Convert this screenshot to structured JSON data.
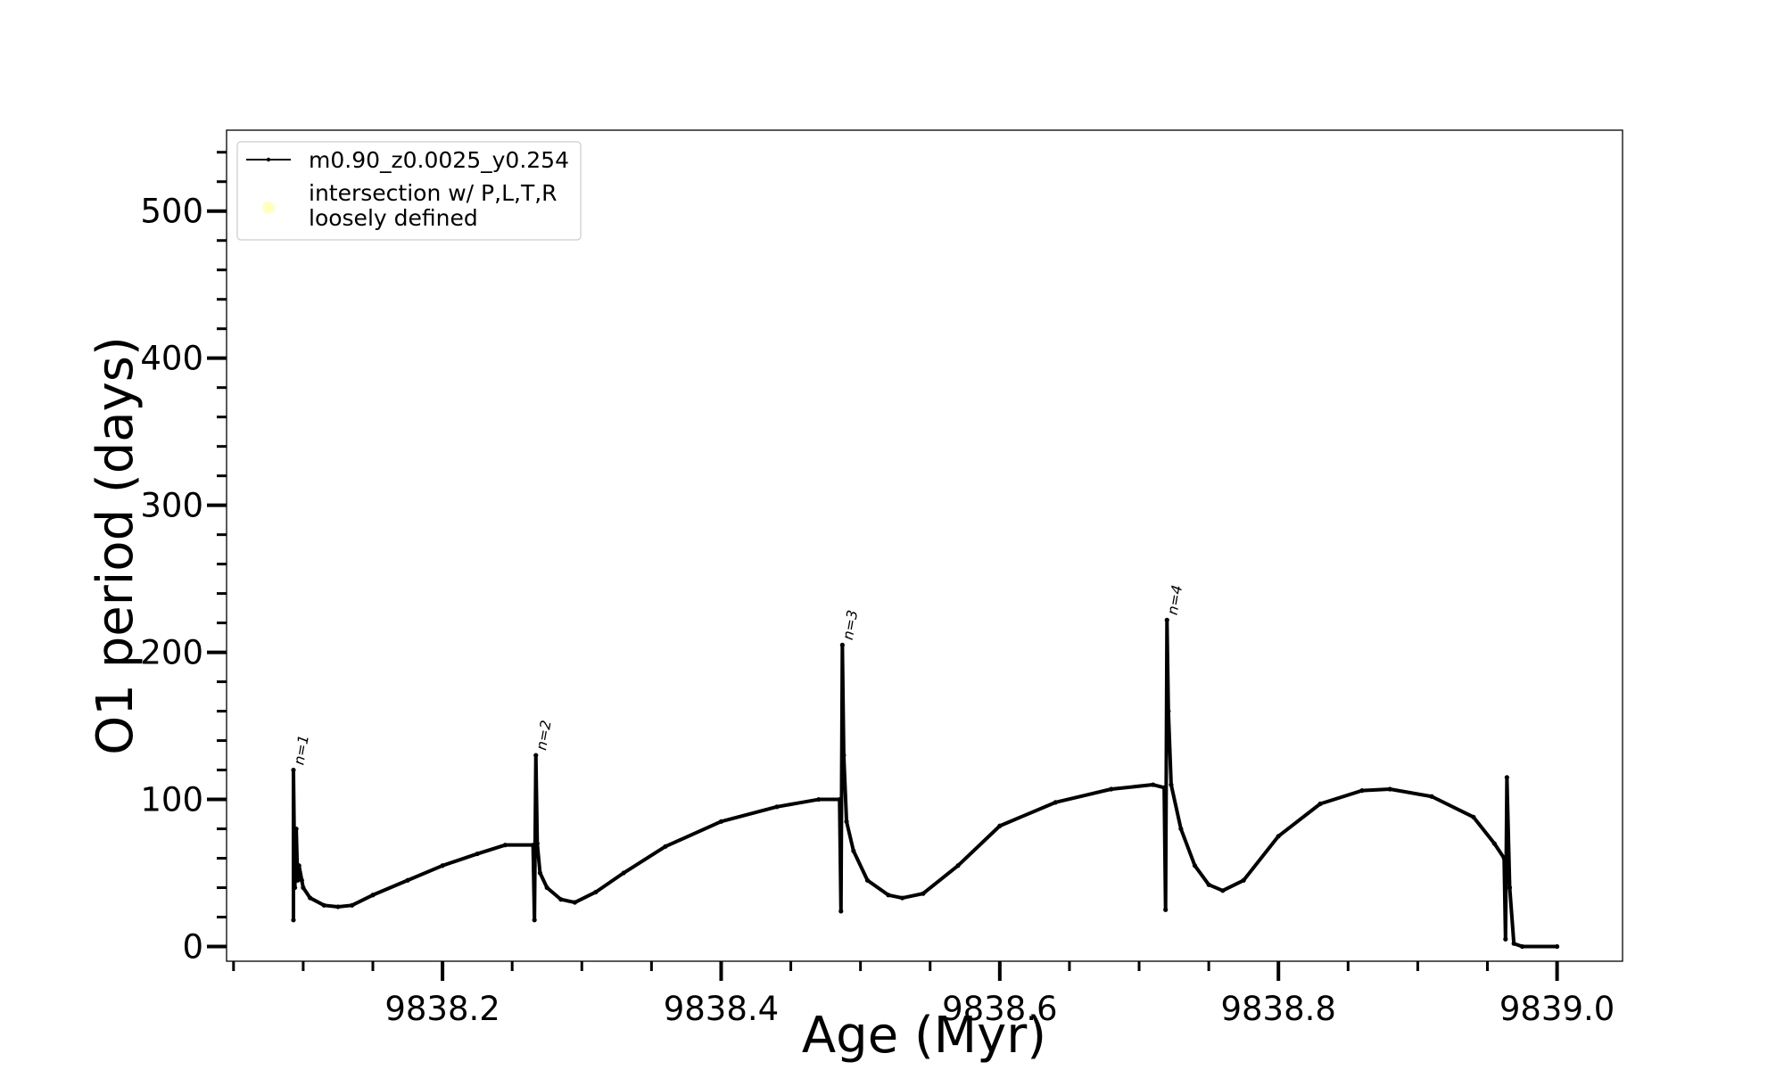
{
  "chart_data": {
    "type": "line",
    "xlabel": "Age (Myr)",
    "ylabel": "O1 period (days)",
    "xlim": [
      9838.045,
      9839.047
    ],
    "ylim": [
      -10,
      555
    ],
    "xticks": [
      9838.2,
      9838.4,
      9838.6,
      9838.8,
      9839.0
    ],
    "xtick_labels": [
      "9838.2",
      "9838.4",
      "9838.6",
      "9838.8",
      "9839.0"
    ],
    "yticks": [
      0,
      100,
      200,
      300,
      400,
      500
    ],
    "ytick_labels": [
      "0",
      "100",
      "200",
      "300",
      "400",
      "500"
    ],
    "x_minor_step": 0.05,
    "y_minor_step": 20,
    "grid": false,
    "legend_position": "upper-left",
    "series": [
      {
        "name": "m0.90_z0.0025_y0.254",
        "color": "#000000",
        "marker": "dot",
        "points": [
          [
            9838.093,
            18
          ],
          [
            9838.093,
            120
          ],
          [
            9838.094,
            40
          ],
          [
            9838.095,
            80
          ],
          [
            9838.096,
            45
          ],
          [
            9838.097,
            55
          ],
          [
            9838.099,
            45
          ],
          [
            9838.1,
            40
          ],
          [
            9838.105,
            33
          ],
          [
            9838.115,
            28
          ],
          [
            9838.125,
            27
          ],
          [
            9838.135,
            28
          ],
          [
            9838.15,
            35
          ],
          [
            9838.175,
            45
          ],
          [
            9838.2,
            55
          ],
          [
            9838.225,
            63
          ],
          [
            9838.245,
            69
          ],
          [
            9838.265,
            69
          ],
          [
            9838.266,
            18
          ],
          [
            9838.267,
            130
          ],
          [
            9838.268,
            70
          ],
          [
            9838.27,
            50
          ],
          [
            9838.275,
            40
          ],
          [
            9838.285,
            32
          ],
          [
            9838.295,
            30
          ],
          [
            9838.31,
            37
          ],
          [
            9838.33,
            50
          ],
          [
            9838.36,
            68
          ],
          [
            9838.4,
            85
          ],
          [
            9838.44,
            95
          ],
          [
            9838.47,
            100
          ],
          [
            9838.485,
            100
          ],
          [
            9838.486,
            24
          ],
          [
            9838.487,
            205
          ],
          [
            9838.488,
            130
          ],
          [
            9838.49,
            85
          ],
          [
            9838.495,
            65
          ],
          [
            9838.505,
            45
          ],
          [
            9838.52,
            35
          ],
          [
            9838.53,
            33
          ],
          [
            9838.545,
            36
          ],
          [
            9838.57,
            55
          ],
          [
            9838.6,
            82
          ],
          [
            9838.64,
            98
          ],
          [
            9838.68,
            107
          ],
          [
            9838.71,
            110
          ],
          [
            9838.718,
            108
          ],
          [
            9838.719,
            25
          ],
          [
            9838.72,
            222
          ],
          [
            9838.721,
            160
          ],
          [
            9838.723,
            110
          ],
          [
            9838.73,
            80
          ],
          [
            9838.74,
            55
          ],
          [
            9838.75,
            42
          ],
          [
            9838.76,
            38
          ],
          [
            9838.775,
            45
          ],
          [
            9838.8,
            75
          ],
          [
            9838.83,
            97
          ],
          [
            9838.86,
            106
          ],
          [
            9838.88,
            107
          ],
          [
            9838.91,
            102
          ],
          [
            9838.94,
            88
          ],
          [
            9838.955,
            70
          ],
          [
            9838.962,
            60
          ],
          [
            9838.963,
            5
          ],
          [
            9838.964,
            115
          ],
          [
            9838.966,
            40
          ],
          [
            9838.969,
            2
          ],
          [
            9838.975,
            0
          ],
          [
            9839.0,
            0
          ]
        ]
      },
      {
        "name": "intersection w/ P,L,T,R\nloosely defined",
        "color": "#ffff99",
        "marker": "circle",
        "points": []
      }
    ],
    "annotations": [
      {
        "text": "n=1",
        "x": 9838.095,
        "y": 123
      },
      {
        "text": "n=2",
        "x": 9838.269,
        "y": 133
      },
      {
        "text": "n=3",
        "x": 9838.489,
        "y": 208
      },
      {
        "text": "n=4",
        "x": 9838.722,
        "y": 225
      }
    ]
  }
}
